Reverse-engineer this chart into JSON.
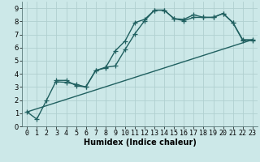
{
  "xlabel": "Humidex (Indice chaleur)",
  "xlim": [
    -0.5,
    23.5
  ],
  "ylim": [
    0,
    9.5
  ],
  "xticks": [
    0,
    1,
    2,
    3,
    4,
    5,
    6,
    7,
    8,
    9,
    10,
    11,
    12,
    13,
    14,
    15,
    16,
    17,
    18,
    19,
    20,
    21,
    22,
    23
  ],
  "yticks": [
    0,
    1,
    2,
    3,
    4,
    5,
    6,
    7,
    8,
    9
  ],
  "bg_color": "#cce8e8",
  "grid_color": "#b0d0d0",
  "line_color": "#206060",
  "series1_x": [
    0,
    1,
    2,
    3,
    4,
    5,
    6,
    7,
    8,
    9,
    10,
    11,
    12,
    13,
    14,
    15,
    16,
    17,
    18,
    19,
    20,
    21,
    22,
    23
  ],
  "series1_y": [
    1.1,
    0.55,
    2.0,
    3.5,
    3.5,
    3.1,
    3.0,
    4.25,
    4.45,
    5.75,
    6.5,
    7.9,
    8.15,
    8.85,
    8.85,
    8.2,
    8.15,
    8.5,
    8.3,
    8.3,
    8.6,
    7.9,
    6.6,
    6.6
  ],
  "series2_x": [
    3,
    4,
    5,
    6,
    7,
    8,
    9,
    10,
    11,
    12,
    13,
    14,
    15,
    16,
    17,
    18,
    19,
    20,
    21,
    22,
    23
  ],
  "series2_y": [
    3.4,
    3.35,
    3.2,
    3.0,
    4.25,
    4.5,
    4.6,
    5.85,
    7.05,
    8.05,
    8.85,
    8.85,
    8.2,
    8.05,
    8.3,
    8.3,
    8.3,
    8.6,
    7.9,
    6.55,
    6.55
  ],
  "series3_x": [
    0,
    23
  ],
  "series3_y": [
    1.1,
    6.6
  ],
  "line_width": 1.0,
  "fontsize_label": 7,
  "fontsize_tick": 6
}
